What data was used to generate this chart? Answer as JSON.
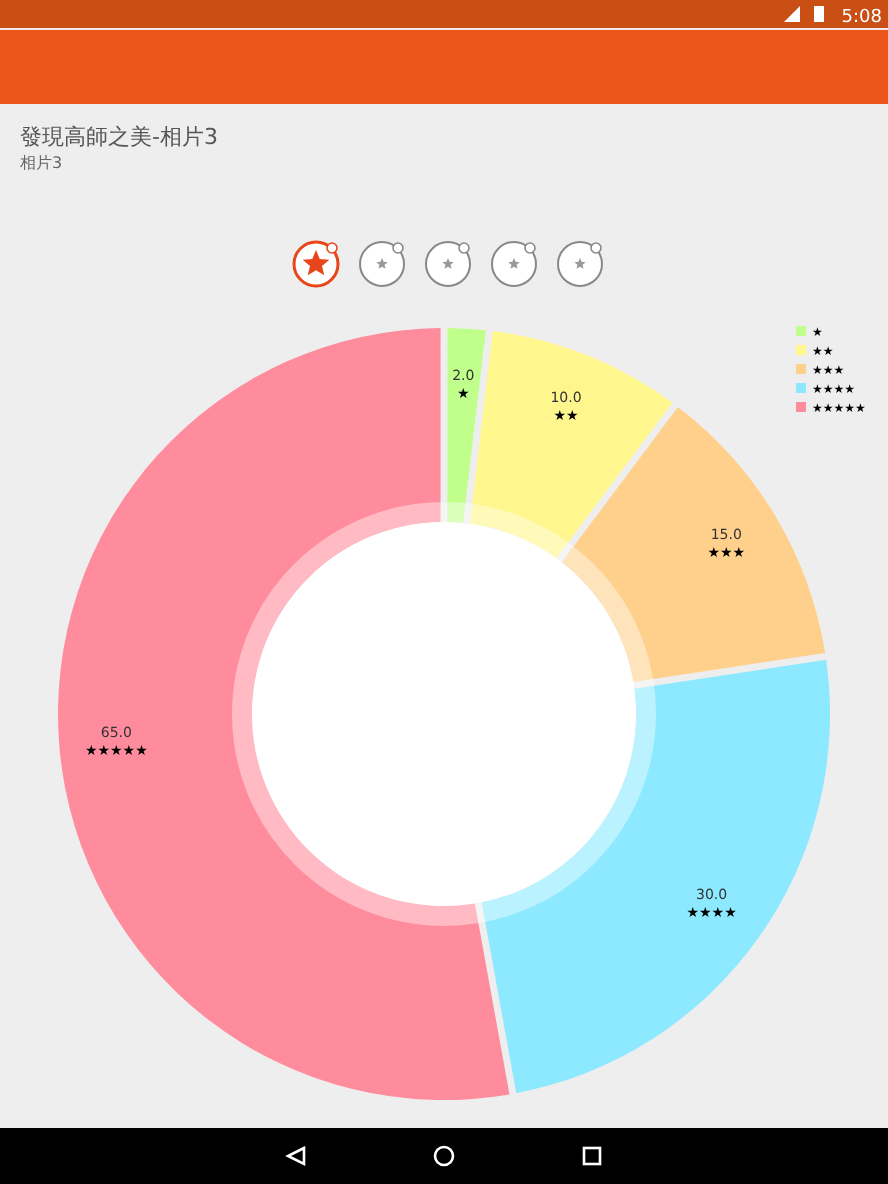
{
  "chart_data": {
    "type": "donut",
    "title": "發現高師之美-相片3",
    "subtitle": "相片3",
    "categories": [
      "★",
      "★★",
      "★★★",
      "★★★★",
      "★★★★★"
    ],
    "values": [
      2,
      10,
      15,
      30,
      65
    ],
    "value_labels": [
      "2.0",
      "10.0",
      "15.0",
      "30.0",
      "65.0"
    ],
    "colors": [
      "#c1ff8c",
      "#fff68d",
      "#ffd08c",
      "#8ce9ff",
      "#ff8c9d"
    ],
    "legend": "top right",
    "annotations": [
      "5:08"
    ]
  }
}
